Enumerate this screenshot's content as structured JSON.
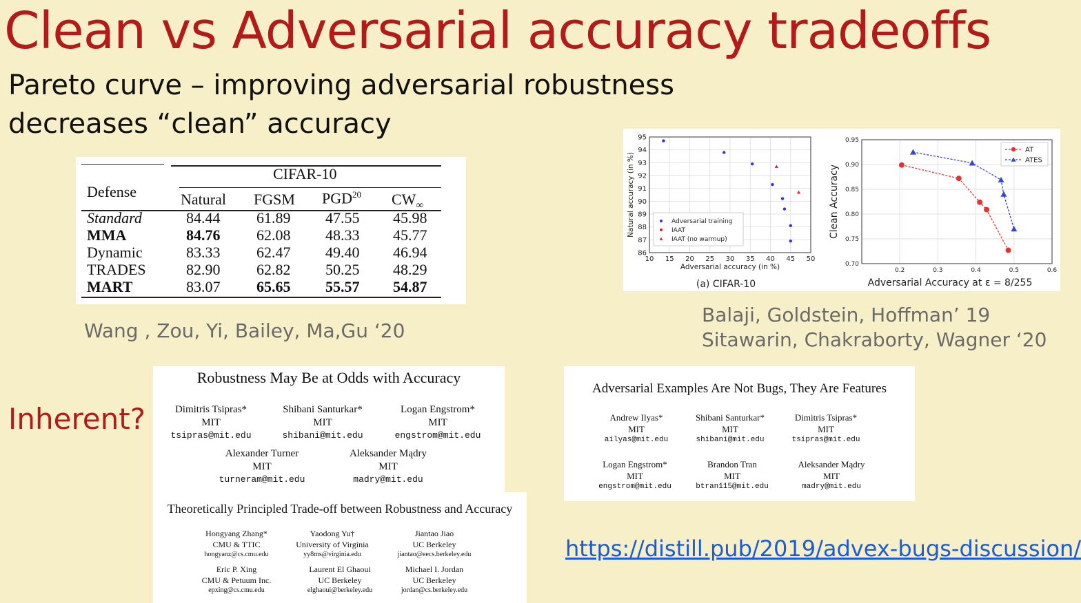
{
  "slide": {
    "title": "Clean vs Adversarial accuracy tradeoffs",
    "subtitle_line1": "Pareto curve – improving adversarial robustness",
    "subtitle_line2": "decreases “clean” accuracy",
    "inherent": "Inherent?",
    "cite_table": "Wang , Zou, Yi, Bailey, Ma,Gu ‘20",
    "cite_plots_1": "Balaji, Goldstein, Hoffman’ 19",
    "cite_plots_2": "Sitawarin, Chakraborty, Wagner ‘20",
    "link": "https://distill.pub/2019/advex-bugs-discussion/"
  },
  "table": {
    "group_header": "CIFAR-10",
    "defense_header": "Defense",
    "columns": [
      "Natural",
      "FGSM",
      "PGD",
      "CW"
    ],
    "pgd_sup": "20",
    "cw_sub": "∞",
    "rows": [
      {
        "name": "Standard",
        "values": [
          "84.44",
          "61.89",
          "47.55",
          "45.98"
        ]
      },
      {
        "name": "MMA",
        "values": [
          "84.76",
          "62.08",
          "48.33",
          "45.77"
        ]
      },
      {
        "name": "Dynamic",
        "values": [
          "83.33",
          "62.47",
          "49.40",
          "46.94"
        ]
      },
      {
        "name": "TRADES",
        "values": [
          "82.90",
          "62.82",
          "50.25",
          "48.29"
        ]
      },
      {
        "name": "MART",
        "values": [
          "83.07",
          "65.65",
          "55.57",
          "54.87"
        ]
      }
    ]
  },
  "chart_data": [
    {
      "type": "scatter",
      "xlabel": "Adversarial accuracy (in %)",
      "ylabel": "Natural accuracy (in %)",
      "caption": "(a) CIFAR-10",
      "xlim": [
        10,
        50
      ],
      "ylim": [
        86,
        95
      ],
      "xticks": [
        "10",
        "15",
        "20",
        "25",
        "30",
        "35",
        "40",
        "45",
        "50"
      ],
      "yticks": [
        "86",
        "87",
        "88",
        "89",
        "90",
        "91",
        "92",
        "93",
        "94",
        "95"
      ],
      "grid": true,
      "legend_position": "bottom-left",
      "series": [
        {
          "name": "Adversarial training",
          "color": "#3333dd",
          "marker": "dot",
          "points": [
            [
              13.5,
              94.7
            ],
            [
              28.5,
              93.8
            ],
            [
              35.5,
              92.9
            ],
            [
              40.5,
              91.3
            ],
            [
              43,
              90.2
            ],
            [
              43.5,
              89.4
            ],
            [
              45,
              88.1
            ],
            [
              45,
              86.9
            ]
          ]
        },
        {
          "name": "IAAT",
          "color": "#dd2222",
          "marker": "dot",
          "points": []
        },
        {
          "name": "IAAT (no warmup)",
          "color": "#dd2222",
          "marker": "triangle",
          "points": [
            [
              41.5,
              92.7
            ],
            [
              47,
              90.7
            ]
          ]
        }
      ]
    },
    {
      "type": "line",
      "xlabel": "Adversarial Accuracy at ε = 8/255",
      "ylabel": "Clean Accuracy",
      "xlim": [
        0.1,
        0.6
      ],
      "ylim": [
        0.7,
        0.95
      ],
      "xticks": [
        "0.2",
        "0.3",
        "0.4",
        "0.5",
        "0.6"
      ],
      "yticks": [
        "0.70",
        "0.75",
        "0.80",
        "0.85",
        "0.90",
        "0.95"
      ],
      "grid": true,
      "legend_position": "top-right",
      "series": [
        {
          "name": "AT",
          "color": "#e23333",
          "marker": "circle",
          "points": [
            [
              0.205,
              0.899
            ],
            [
              0.355,
              0.872
            ],
            [
              0.41,
              0.824
            ],
            [
              0.428,
              0.809
            ],
            [
              0.485,
              0.727
            ]
          ]
        },
        {
          "name": "ATES",
          "color": "#3344dd",
          "marker": "triangle",
          "points": [
            [
              0.235,
              0.925
            ],
            [
              0.39,
              0.903
            ],
            [
              0.466,
              0.869
            ],
            [
              0.473,
              0.84
            ],
            [
              0.5,
              0.77
            ]
          ]
        }
      ]
    }
  ],
  "paper1": {
    "title": "Robustness May Be at Odds with Accuracy",
    "authors": [
      {
        "name": "Dimitris Tsipras*",
        "aff": "MIT",
        "email": "tsipras@mit.edu"
      },
      {
        "name": "Shibani Santurkar*",
        "aff": "MIT",
        "email": "shibani@mit.edu"
      },
      {
        "name": "Logan Engstrom*",
        "aff": "MIT",
        "email": "engstrom@mit.edu"
      },
      {
        "name": "Alexander Turner",
        "aff": "MIT",
        "email": "turneram@mit.edu"
      },
      {
        "name": "Aleksander Mądry",
        "aff": "MIT",
        "email": "madry@mit.edu"
      }
    ]
  },
  "paper2": {
    "title": "Theoretically Principled Trade-off between Robustness and Accuracy",
    "authors": [
      {
        "name": "Hongyang Zhang*",
        "aff": "CMU & TTIC",
        "email": "hongyanz@cs.cmu.edu"
      },
      {
        "name": "Yaodong Yu†",
        "aff": "University of Virginia",
        "email": "yy8ms@virginia.edu"
      },
      {
        "name": "Jiantao Jiao",
        "aff": "UC Berkeley",
        "email": "jiantao@eecs.berkeley.edu"
      },
      {
        "name": "Eric P. Xing",
        "aff": "CMU & Petuum Inc.",
        "email": "epxing@cs.cmu.edu"
      },
      {
        "name": "Laurent El Ghaoui",
        "aff": "UC Berkeley",
        "email": "elghaoui@berkeley.edu"
      },
      {
        "name": "Michael I. Jordan",
        "aff": "UC Berkeley",
        "email": "jordan@cs.berkeley.edu"
      }
    ]
  },
  "paper3": {
    "title": "Adversarial Examples Are Not Bugs, They Are Features",
    "authors": [
      {
        "name": "Andrew Ilyas*",
        "aff": "MIT",
        "email": "ailyas@mit.edu"
      },
      {
        "name": "Shibani Santurkar*",
        "aff": "MIT",
        "email": "shibani@mit.edu"
      },
      {
        "name": "Dimitris Tsipras*",
        "aff": "MIT",
        "email": "tsipras@mit.edu"
      },
      {
        "name": "Logan Engstrom*",
        "aff": "MIT",
        "email": "engstrom@mit.edu"
      },
      {
        "name": "Brandon Tran",
        "aff": "MIT",
        "email": "btran115@mit.edu"
      },
      {
        "name": "Aleksander Mądry",
        "aff": "MIT",
        "email": "madry@mit.edu"
      }
    ]
  }
}
